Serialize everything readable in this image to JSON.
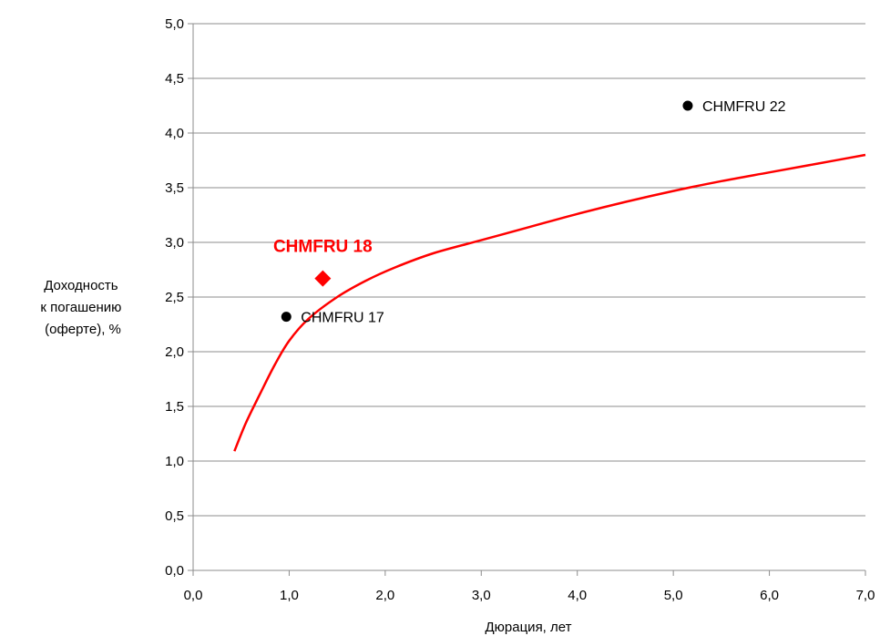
{
  "chart_data": {
    "type": "scatter",
    "title": "",
    "xlabel": "Дюрация, лет",
    "ylabel": [
      "Доходность",
      "к погашению",
      "(оферте), %"
    ],
    "xlim": [
      0,
      7
    ],
    "ylim": [
      0,
      5
    ],
    "x_ticks": [
      "0,0",
      "1,0",
      "2,0",
      "3,0",
      "4,0",
      "5,0",
      "6,0",
      "7,0"
    ],
    "y_ticks": [
      "0,0",
      "0,5",
      "1,0",
      "1,5",
      "2,0",
      "2,5",
      "3,0",
      "3,5",
      "4,0",
      "4,5",
      "5,0"
    ],
    "grid": "horizontal",
    "points": [
      {
        "label": "CHMFRU 17",
        "x": 0.97,
        "y": 2.32,
        "marker": "circle",
        "color": "#000000"
      },
      {
        "label": "CHMFRU 22",
        "x": 5.15,
        "y": 4.25,
        "marker": "circle",
        "color": "#000000"
      }
    ],
    "highlight": {
      "label": "CHMFRU 18",
      "x": 1.35,
      "y": 2.67,
      "marker": "diamond",
      "color": "#ff0000"
    },
    "curve": {
      "color": "#ff0000",
      "points": [
        [
          0.43,
          1.09
        ],
        [
          0.55,
          1.35
        ],
        [
          0.7,
          1.62
        ],
        [
          0.85,
          1.88
        ],
        [
          1.0,
          2.1
        ],
        [
          1.2,
          2.3
        ],
        [
          1.5,
          2.5
        ],
        [
          1.8,
          2.65
        ],
        [
          2.1,
          2.77
        ],
        [
          2.5,
          2.9
        ],
        [
          3.0,
          3.02
        ],
        [
          3.5,
          3.14
        ],
        [
          4.0,
          3.26
        ],
        [
          4.5,
          3.37
        ],
        [
          5.0,
          3.47
        ],
        [
          5.5,
          3.56
        ],
        [
          6.0,
          3.64
        ],
        [
          6.5,
          3.72
        ],
        [
          7.0,
          3.8
        ]
      ]
    }
  }
}
